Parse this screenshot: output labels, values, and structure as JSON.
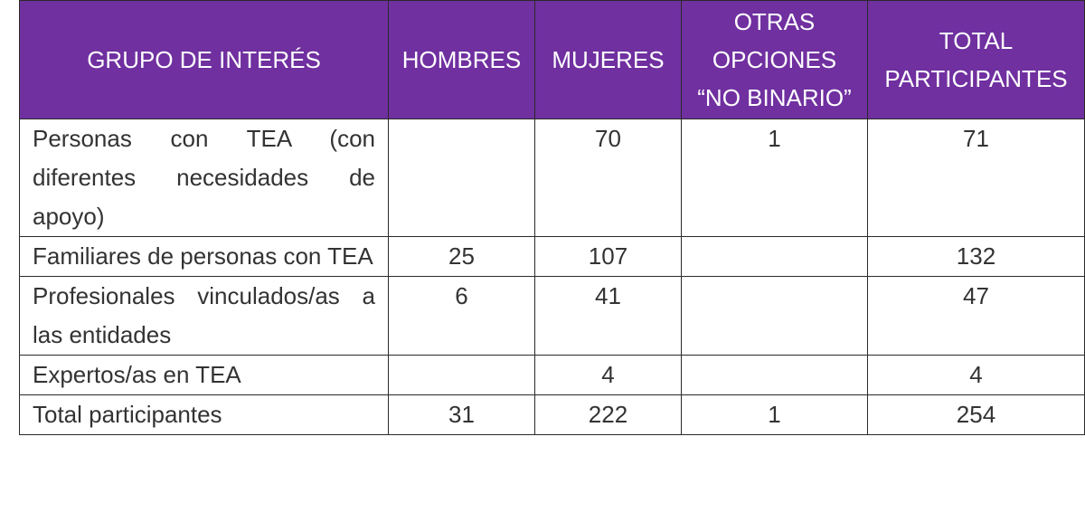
{
  "columns": {
    "group": "GRUPO DE INTERÉS",
    "men": "HOMBRES",
    "women": "MUJERES",
    "other_line1": "OTRAS",
    "other_line2": "OPCIONES",
    "other_line3": "“NO BINARIO”",
    "total_line1": "TOTAL",
    "total_line2": "PARTICIPANTES"
  },
  "rows": [
    {
      "group": "Personas con TEA (con diferentes necesidades de apoyo)",
      "men": "",
      "women": "70",
      "other": "1",
      "total": "71"
    },
    {
      "group": "Familiares de personas con TEA",
      "men": "25",
      "women": "107",
      "other": "",
      "total": "132"
    },
    {
      "group": "Profesionales vinculados/as a las entidades",
      "men": "6",
      "women": "41",
      "other": "",
      "total": "47"
    },
    {
      "group": "Expertos/as en TEA",
      "men": "",
      "women": "4",
      "other": "",
      "total": "4"
    },
    {
      "group": "Total participantes",
      "men": "31",
      "women": "222",
      "other": "1",
      "total": "254"
    }
  ],
  "colors": {
    "header_bg": "#7030a0",
    "header_text": "#ffffff",
    "border": "#2a2a2a"
  }
}
